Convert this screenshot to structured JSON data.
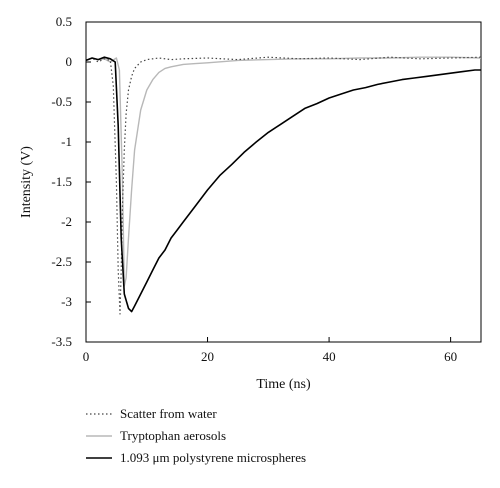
{
  "chart_data": {
    "type": "line",
    "xlabel": "Time (ns)",
    "ylabel": "Intensity (V)",
    "xlim": [
      0,
      65
    ],
    "ylim": [
      -3.5,
      0.5
    ],
    "xticks": [
      0,
      20,
      40,
      60
    ],
    "yticks": [
      0.5,
      0,
      -0.5,
      -1,
      -1.5,
      -2,
      -2.5,
      -3,
      -3.5
    ],
    "grid": false,
    "legend_position": "below",
    "series": [
      {
        "name": "Scatter from water",
        "style": "dotted",
        "color": "#444444",
        "x": [
          0,
          1,
          2,
          3,
          4,
          4.5,
          5,
          5.3,
          5.6,
          5.8,
          6.0,
          6.3,
          6.6,
          7.0,
          7.5,
          8.0,
          9,
          10,
          12,
          14,
          16,
          20,
          25,
          30,
          35,
          40,
          45,
          50,
          55,
          60,
          65
        ],
        "y": [
          0.02,
          0.05,
          0.0,
          0.04,
          0.02,
          -0.3,
          -1.5,
          -2.6,
          -3.15,
          -2.6,
          -1.8,
          -1.1,
          -0.65,
          -0.35,
          -0.18,
          -0.08,
          0.0,
          0.03,
          0.05,
          0.03,
          0.04,
          0.05,
          0.03,
          0.06,
          0.04,
          0.05,
          0.03,
          0.06,
          0.04,
          0.05,
          0.06
        ]
      },
      {
        "name": "Tryptophan aerosols",
        "style": "solid",
        "color": "#b8b8b8",
        "x": [
          0,
          1,
          2,
          3,
          4,
          5,
          5.5,
          6.0,
          6.3,
          6.6,
          7.0,
          7.5,
          8,
          9,
          10,
          11,
          12,
          13,
          14,
          16,
          18,
          20,
          25,
          30,
          35,
          40,
          45,
          50,
          55,
          60,
          65
        ],
        "y": [
          0.02,
          0.05,
          0.03,
          0.04,
          0.0,
          0.05,
          -0.1,
          -1.5,
          -2.8,
          -2.7,
          -2.2,
          -1.6,
          -1.1,
          -0.6,
          -0.35,
          -0.22,
          -0.13,
          -0.08,
          -0.06,
          -0.03,
          -0.02,
          -0.01,
          0.02,
          0.03,
          0.04,
          0.04,
          0.05,
          0.05,
          0.06,
          0.06,
          0.05
        ]
      },
      {
        "name": "1.093 μm polystyrene microspheres",
        "style": "solid",
        "color": "#000000",
        "x": [
          0,
          1,
          2,
          3,
          4,
          4.8,
          5.3,
          5.8,
          6.3,
          7.0,
          7.5,
          8,
          9,
          10,
          11,
          12,
          13,
          14,
          15,
          16,
          17,
          18,
          20,
          22,
          24,
          26,
          28,
          30,
          32,
          34,
          36,
          38,
          40,
          42,
          44,
          46,
          48,
          50,
          52,
          54,
          56,
          58,
          60,
          62,
          64,
          65
        ],
        "y": [
          0.02,
          0.05,
          0.03,
          0.06,
          0.04,
          0.0,
          -0.8,
          -2.2,
          -2.9,
          -3.08,
          -3.12,
          -3.05,
          -2.9,
          -2.75,
          -2.6,
          -2.45,
          -2.35,
          -2.2,
          -2.1,
          -2.0,
          -1.9,
          -1.8,
          -1.6,
          -1.42,
          -1.28,
          -1.13,
          -1.0,
          -0.88,
          -0.78,
          -0.68,
          -0.58,
          -0.52,
          -0.45,
          -0.4,
          -0.35,
          -0.32,
          -0.28,
          -0.25,
          -0.22,
          -0.2,
          -0.18,
          -0.16,
          -0.14,
          -0.12,
          -0.1,
          -0.1
        ]
      }
    ]
  }
}
